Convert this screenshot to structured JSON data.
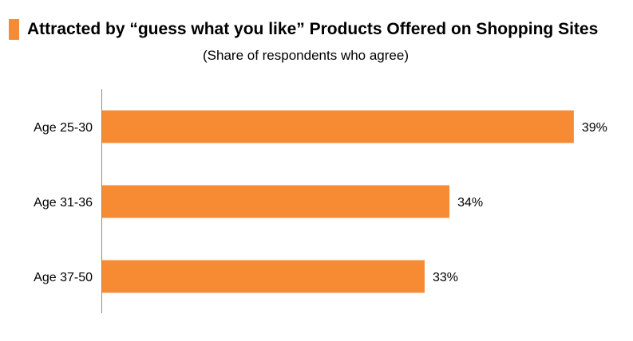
{
  "colors": {
    "accent": "#F68B33",
    "bar": "#F68B33",
    "axis": "#8C8C8C"
  },
  "chart_data": {
    "type": "bar",
    "orientation": "horizontal",
    "title": "Attracted by “guess what you like” Products Offered on Shopping Sites",
    "subtitle": "(Share of respondents who agree)",
    "categories": [
      "Age 25-30",
      "Age 31-36",
      "Age 37-50"
    ],
    "values": [
      39,
      34,
      33
    ],
    "value_labels": [
      "39%",
      "34%",
      "33%"
    ],
    "unit": "%",
    "xlabel": "",
    "ylabel": "",
    "xlim": [
      20,
      40
    ],
    "grid": false,
    "legend": "none"
  }
}
